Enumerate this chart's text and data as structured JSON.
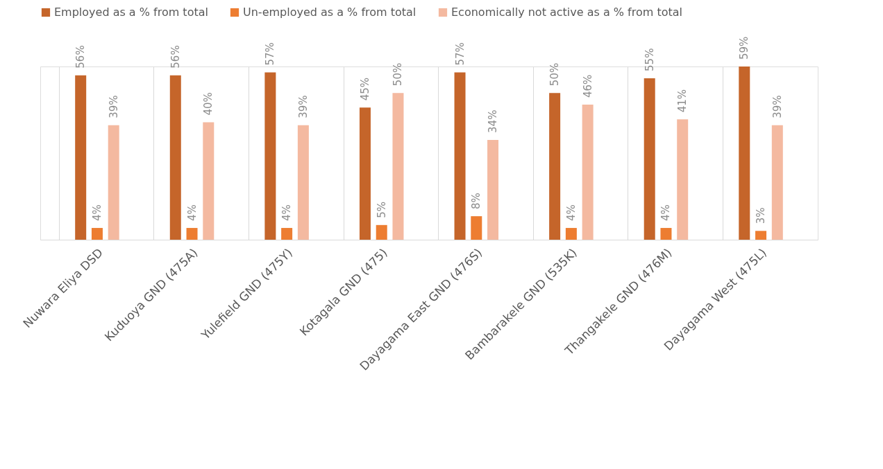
{
  "chart_data": {
    "type": "bar",
    "categories": [
      "Nuwara Eliya DSD",
      "Kuduoya GND (475A)",
      "Yulefield GND (475Y)",
      "Kotagala GND (475)",
      "Dayagama East GND (476S)",
      "Bambarakele GND (535K)",
      "Thangakele GND (476M)",
      "Dayagama West (475L)"
    ],
    "series": [
      {
        "name": "Employed as a % from total",
        "color": "#c5652a",
        "values": [
          56,
          56,
          57,
          45,
          57,
          50,
          55,
          59
        ],
        "value_labels": [
          "56%",
          "56%",
          "57%",
          "45%",
          "57%",
          "50%",
          "55%",
          "59%"
        ]
      },
      {
        "name": "Un-employed as a % from total",
        "color": "#ed7d31",
        "values": [
          4,
          4,
          4,
          5,
          8,
          4,
          4,
          3
        ],
        "value_labels": [
          "4%",
          "4%",
          "4%",
          "5%",
          "8%",
          "4%",
          "4%",
          "3%"
        ]
      },
      {
        "name": "Economically not active as a % from total",
        "color": "#f4b9a0",
        "values": [
          39,
          40,
          39,
          50,
          34,
          46,
          41,
          39
        ],
        "value_labels": [
          "39%",
          "40%",
          "39%",
          "50%",
          "34%",
          "46%",
          "41%",
          "39%"
        ]
      }
    ],
    "grid": "x",
    "legend": "top"
  }
}
